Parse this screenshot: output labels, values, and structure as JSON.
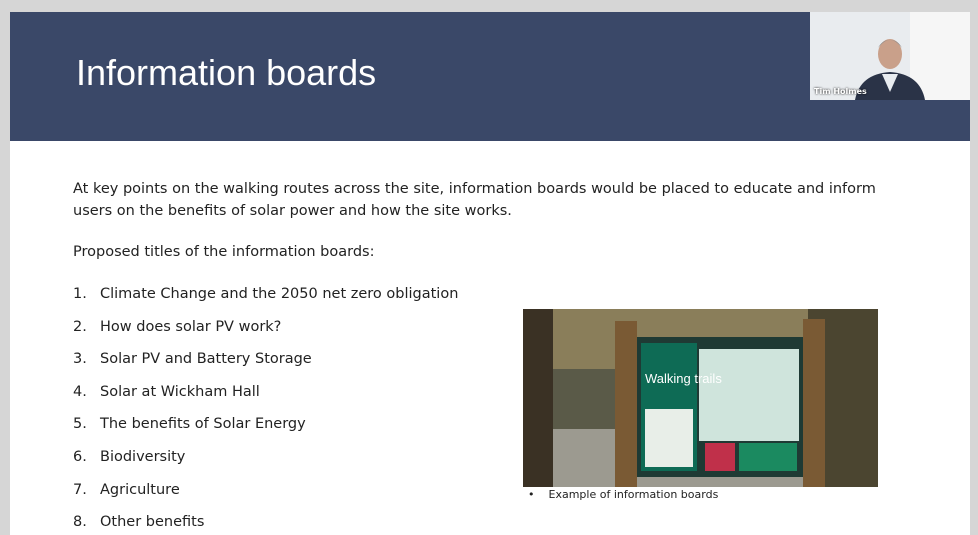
{
  "slide": {
    "title": "Information boards",
    "intro": "At key points on the walking routes across the site, information boards would be placed to educate and inform users on the benefits of solar power and how the site works.",
    "subheading": "Proposed titles of the information boards:",
    "items": [
      {
        "number": "1.",
        "text": "Climate Change and the 2050 net zero obligation"
      },
      {
        "number": "2.",
        "text": "How does solar PV work?"
      },
      {
        "number": "3.",
        "text": "Solar PV and Battery Storage"
      },
      {
        "number": "4.",
        "text": "Solar at Wickham Hall"
      },
      {
        "number": "5.",
        "text": "The benefits of Solar Energy"
      },
      {
        "number": "6.",
        "text": "Biodiversity"
      },
      {
        "number": "7.",
        "text": "Agriculture"
      },
      {
        "number": "8.",
        "text": "Other benefits"
      }
    ],
    "image_text": "Walking trails",
    "caption_bullet": "•",
    "caption": "Example of information boards"
  },
  "video": {
    "participant": "Tim Holmes"
  }
}
